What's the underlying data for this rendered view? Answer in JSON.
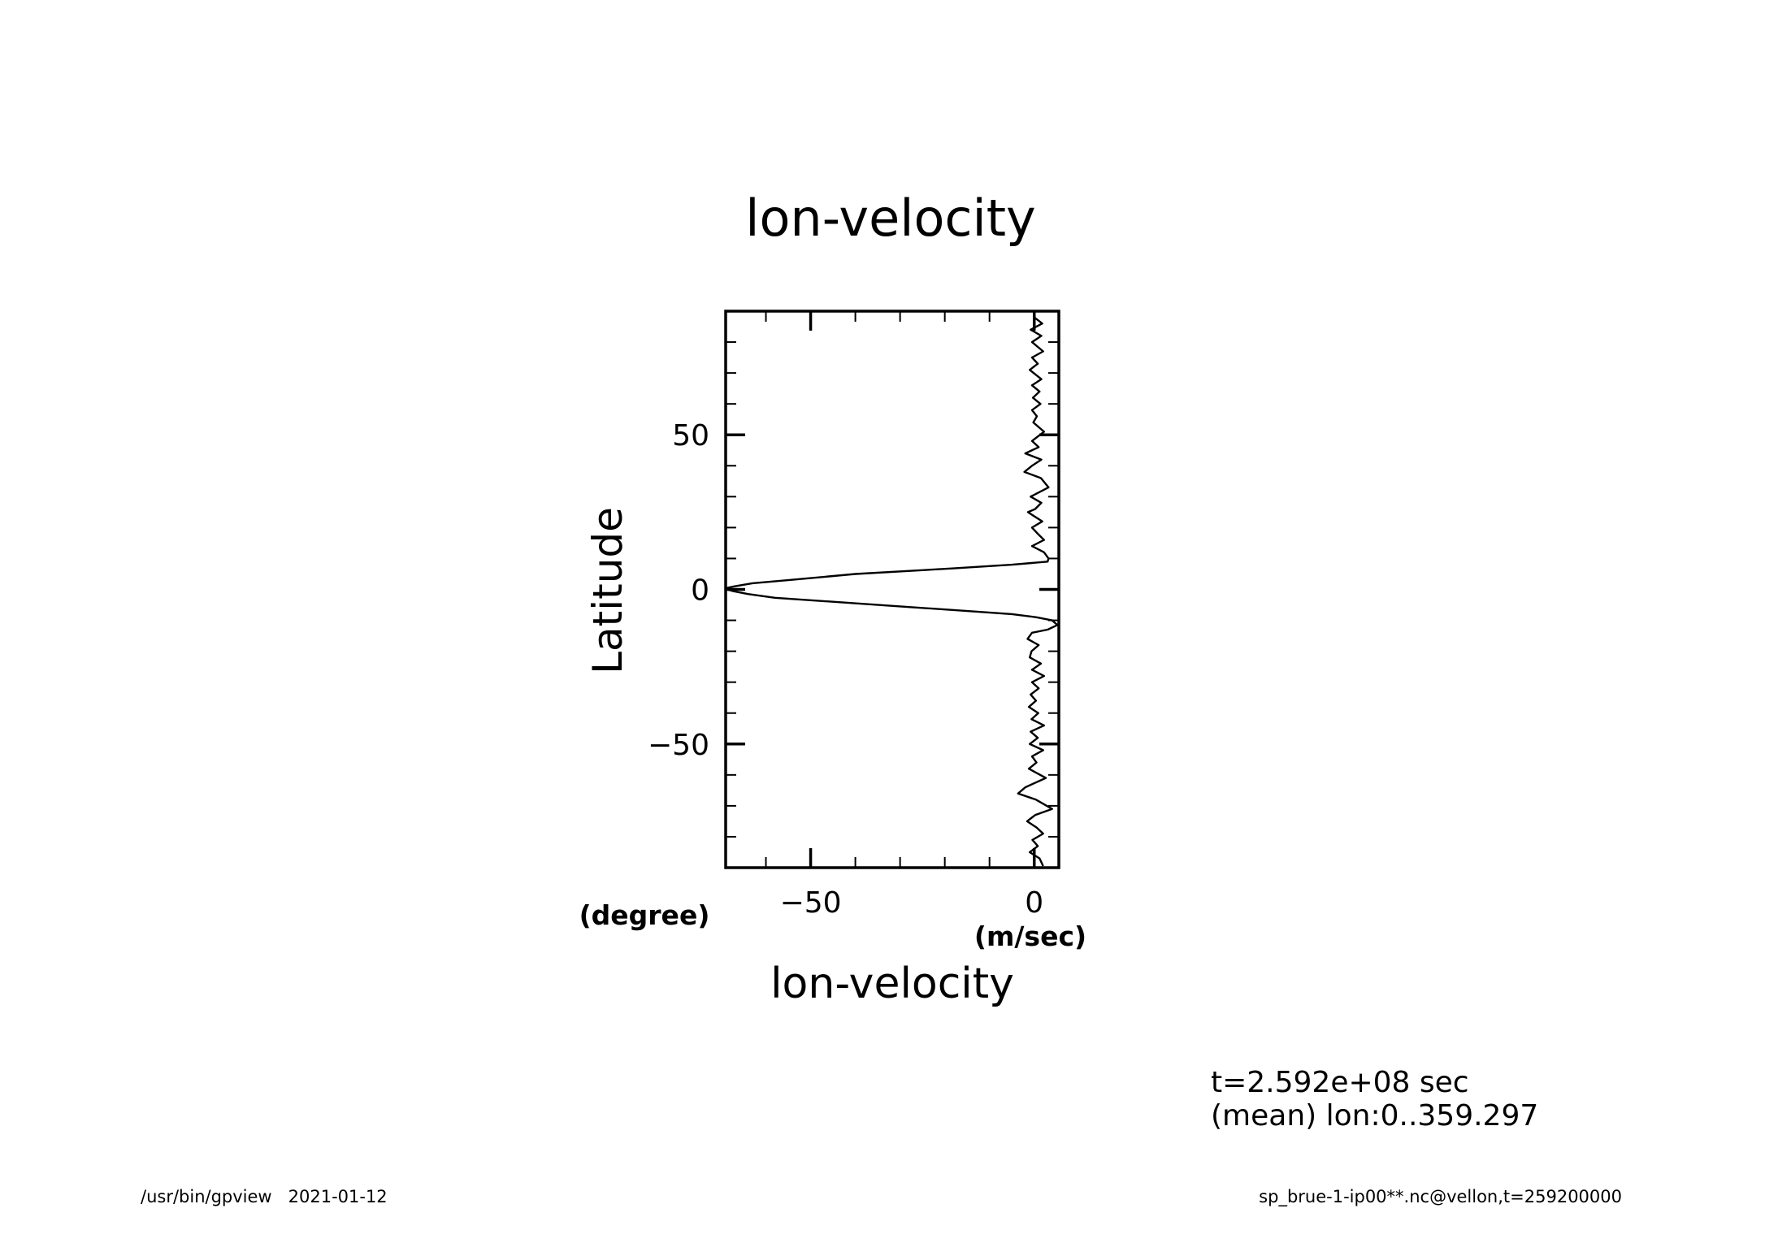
{
  "chart_data": {
    "type": "line",
    "title": "lon-velocity",
    "xlabel": "lon-velocity",
    "ylabel": "Latitude",
    "x_unit": "(m/sec)",
    "y_unit": "(degree)",
    "xlim": [
      -69,
      5.5
    ],
    "ylim": [
      -90,
      90
    ],
    "x_ticks": [
      -50,
      0
    ],
    "y_ticks": [
      -50,
      0,
      50
    ],
    "x_tick_labels": [
      "-50",
      "0"
    ],
    "y_tick_labels": [
      "-50",
      "0",
      "50"
    ],
    "x_minor_step": 10,
    "y_minor_step": 10,
    "grid": false,
    "series": [
      {
        "points": [
          [
            0.0,
            88
          ],
          [
            1.8,
            86
          ],
          [
            -0.8,
            84
          ],
          [
            1.6,
            82
          ],
          [
            -0.5,
            80
          ],
          [
            2.0,
            77
          ],
          [
            -0.5,
            75
          ],
          [
            0.8,
            73
          ],
          [
            -1.0,
            71
          ],
          [
            1.6,
            68
          ],
          [
            -0.5,
            66
          ],
          [
            1.2,
            64
          ],
          [
            -0.3,
            62
          ],
          [
            1.4,
            60
          ],
          [
            -0.5,
            58
          ],
          [
            0.6,
            56
          ],
          [
            -0.2,
            54
          ],
          [
            2.2,
            51
          ],
          [
            -0.5,
            48
          ],
          [
            1.0,
            46
          ],
          [
            -2.0,
            44
          ],
          [
            1.6,
            42
          ],
          [
            -0.5,
            40
          ],
          [
            -2.2,
            38
          ],
          [
            1.5,
            36
          ],
          [
            3.2,
            33
          ],
          [
            -0.8,
            30
          ],
          [
            1.6,
            28
          ],
          [
            0.2,
            26
          ],
          [
            -1.4,
            25
          ],
          [
            1.8,
            22
          ],
          [
            -0.5,
            20
          ],
          [
            0.8,
            18
          ],
          [
            2.2,
            16
          ],
          [
            -0.5,
            14
          ],
          [
            2.2,
            12
          ],
          [
            3.2,
            10
          ],
          [
            3.0,
            9
          ],
          [
            -5.0,
            8
          ],
          [
            -18,
            6.8
          ],
          [
            -40,
            5
          ],
          [
            -55,
            3
          ],
          [
            -63,
            2
          ],
          [
            -67,
            1
          ],
          [
            -68.6,
            0.5
          ],
          [
            -68.8,
            0
          ],
          [
            -67.5,
            -0.5
          ],
          [
            -64,
            -1.5
          ],
          [
            -58,
            -2.7
          ],
          [
            -45,
            -4
          ],
          [
            -30,
            -5.5
          ],
          [
            -15,
            -7
          ],
          [
            -5,
            -8
          ],
          [
            0.5,
            -9
          ],
          [
            4.0,
            -10
          ],
          [
            5.2,
            -11.5
          ],
          [
            3.0,
            -13
          ],
          [
            -0.5,
            -14
          ],
          [
            -1.5,
            -16
          ],
          [
            1.0,
            -18
          ],
          [
            -0.6,
            -20
          ],
          [
            -1.0,
            -22
          ],
          [
            1.5,
            -24
          ],
          [
            -0.5,
            -26
          ],
          [
            2.2,
            -28
          ],
          [
            -0.5,
            -30
          ],
          [
            1.0,
            -32
          ],
          [
            -0.8,
            -34
          ],
          [
            0.4,
            -36
          ],
          [
            -1.2,
            -38
          ],
          [
            0.9,
            -40
          ],
          [
            -0.6,
            -42
          ],
          [
            2.2,
            -44
          ],
          [
            -0.8,
            -46
          ],
          [
            0.8,
            -48
          ],
          [
            -1.0,
            -50
          ],
          [
            2.0,
            -52
          ],
          [
            -0.5,
            -54
          ],
          [
            0.5,
            -56
          ],
          [
            -1.2,
            -58
          ],
          [
            2.6,
            -61
          ],
          [
            -0.5,
            -63
          ],
          [
            -2.0,
            -64
          ],
          [
            -3.6,
            -66
          ],
          [
            0.4,
            -68
          ],
          [
            4.0,
            -71
          ],
          [
            0.2,
            -73
          ],
          [
            -1.6,
            -75
          ],
          [
            0.5,
            -77
          ],
          [
            2.0,
            -79
          ],
          [
            -0.4,
            -81
          ],
          [
            0.8,
            -83
          ],
          [
            -1.0,
            -85
          ],
          [
            1.2,
            -87
          ],
          [
            2.0,
            -89.5
          ]
        ]
      }
    ]
  },
  "annotations": {
    "time": "t=2.592e+08 sec",
    "mean": "(mean) lon:0..359.297"
  },
  "footer": {
    "left": "/usr/bin/gpview   2021-01-12",
    "right": "sp_brue-1-ip00**.nc@vellon,t=259200000"
  }
}
